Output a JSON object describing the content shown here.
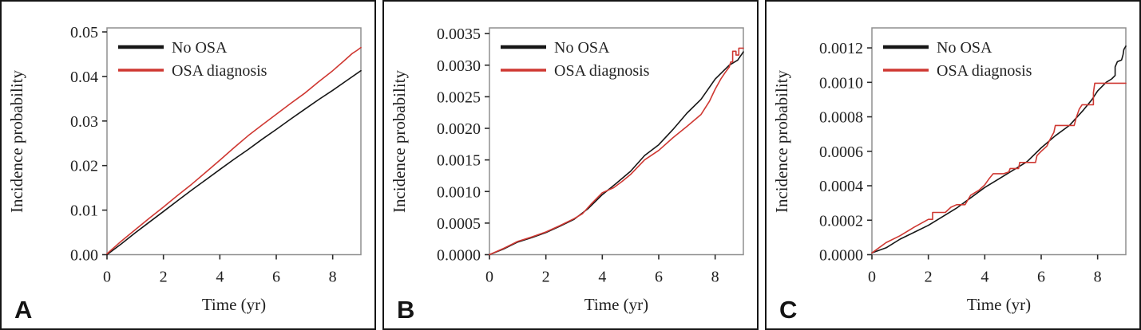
{
  "figure": {
    "background": "#ffffff",
    "panel_border_color": "#161616",
    "plot_box_color": "#8f8f8f",
    "text_color": "#1f1f1f",
    "series_colors": {
      "no_osa": "#161616",
      "osa": "#cf3832"
    }
  },
  "chart_data": [
    {
      "type": "line",
      "panel_label": "A",
      "xlabel": "Time (yr)",
      "ylabel": "Incidence probability",
      "xlim": [
        0,
        9
      ],
      "ylim": [
        0,
        0.05
      ],
      "xticks": [
        "0",
        "2",
        "4",
        "6",
        "8"
      ],
      "yticks": [
        "0.00",
        "0.01",
        "0.02",
        "0.03",
        "0.04",
        "0.05"
      ],
      "grid": false,
      "legend_position": "top-left-inside",
      "legend": [
        {
          "label": "No OSA",
          "color": "#161616"
        },
        {
          "label": "OSA diagnosis",
          "color": "#cf3832"
        }
      ],
      "layout": {
        "y_top": 0.0509
      },
      "series": [
        {
          "name": "No OSA",
          "color": "#161616",
          "points": [
            [
              0,
              0
            ],
            [
              0.5,
              0.0024
            ],
            [
              1,
              0.0049
            ],
            [
              1.5,
              0.0073
            ],
            [
              2,
              0.0097
            ],
            [
              2.5,
              0.0121
            ],
            [
              3,
              0.0145
            ],
            [
              3.5,
              0.0168
            ],
            [
              4,
              0.0191
            ],
            [
              4.5,
              0.0214
            ],
            [
              5,
              0.0236
            ],
            [
              5.5,
              0.0259
            ],
            [
              6,
              0.0281
            ],
            [
              6.5,
              0.0304
            ],
            [
              7,
              0.0326
            ],
            [
              7.5,
              0.0348
            ],
            [
              8,
              0.0369
            ],
            [
              8.5,
              0.0391
            ],
            [
              9,
              0.0413
            ]
          ]
        },
        {
          "name": "OSA diagnosis",
          "color": "#cf3832",
          "points": [
            [
              0,
              0.0002
            ],
            [
              0.5,
              0.003
            ],
            [
              1,
              0.0056
            ],
            [
              1.5,
              0.0082
            ],
            [
              2,
              0.0107
            ],
            [
              2.5,
              0.0133
            ],
            [
              3,
              0.0158
            ],
            [
              3.5,
              0.0185
            ],
            [
              4,
              0.0212
            ],
            [
              4.5,
              0.024
            ],
            [
              5,
              0.0267
            ],
            [
              5.5,
              0.0291
            ],
            [
              6,
              0.0315
            ],
            [
              6.5,
              0.0339
            ],
            [
              7,
              0.0362
            ],
            [
              7.5,
              0.0388
            ],
            [
              8,
              0.0413
            ],
            [
              8.4,
              0.0435
            ],
            [
              8.7,
              0.0452
            ],
            [
              8.85,
              0.0458
            ],
            [
              9,
              0.0465
            ]
          ]
        }
      ]
    },
    {
      "type": "line",
      "panel_label": "B",
      "xlabel": "Time (yr)",
      "ylabel": "Incidence probability",
      "xlim": [
        0,
        9
      ],
      "ylim": [
        0,
        0.0035
      ],
      "xticks": [
        "0",
        "2",
        "4",
        "6",
        "8"
      ],
      "yticks": [
        "0.0000",
        "0.0005",
        "0.0010",
        "0.0015",
        "0.0020",
        "0.0025",
        "0.0030",
        "0.0035"
      ],
      "grid": false,
      "legend_position": "top-left-inside",
      "legend": [
        {
          "label": "No OSA",
          "color": "#161616"
        },
        {
          "label": "OSA diagnosis",
          "color": "#cf3832"
        }
      ],
      "layout": {
        "y_top": 0.00359
      },
      "series": [
        {
          "name": "No OSA",
          "color": "#161616",
          "points": [
            [
              0,
              0
            ],
            [
              0.5,
              9e-05
            ],
            [
              1,
              0.0002
            ],
            [
              1.5,
              0.00027
            ],
            [
              2,
              0.00035
            ],
            [
              2.5,
              0.00045
            ],
            [
              3,
              0.00056
            ],
            [
              3.5,
              0.00073
            ],
            [
              4,
              0.00095
            ],
            [
              4.5,
              0.00113
            ],
            [
              5,
              0.00132
            ],
            [
              5.5,
              0.00157
            ],
            [
              6,
              0.00174
            ],
            [
              6.5,
              0.00198
            ],
            [
              7,
              0.00224
            ],
            [
              7.5,
              0.00246
            ],
            [
              8,
              0.00278
            ],
            [
              8.5,
              0.003
            ],
            [
              8.8,
              0.00308
            ],
            [
              9,
              0.00321
            ]
          ]
        },
        {
          "name": "OSA diagnosis",
          "color": "#cf3832",
          "points": [
            [
              0,
              0
            ],
            [
              0.5,
              0.0001
            ],
            [
              1,
              0.00021
            ],
            [
              1.5,
              0.00028
            ],
            [
              2,
              0.00036
            ],
            [
              2.5,
              0.00046
            ],
            [
              3,
              0.00057
            ],
            [
              3.3,
              0.00065
            ],
            [
              3.6,
              0.0008
            ],
            [
              4,
              0.00098
            ],
            [
              4.4,
              0.00106
            ],
            [
              4.7,
              0.00116
            ],
            [
              5,
              0.00127
            ],
            [
              5.5,
              0.0015
            ],
            [
              6,
              0.00165
            ],
            [
              6.5,
              0.00185
            ],
            [
              7,
              0.00203
            ],
            [
              7.5,
              0.00222
            ],
            [
              7.8,
              0.00243
            ],
            [
              8,
              0.00262
            ],
            [
              8.2,
              0.00278
            ],
            [
              8.35,
              0.00288
            ],
            [
              8.5,
              0.00297
            ],
            [
              8.55,
              0.00305
            ],
            [
              8.62,
              0.00305
            ],
            [
              8.62,
              0.00322
            ],
            [
              8.74,
              0.00322
            ],
            [
              8.74,
              0.00316
            ],
            [
              8.84,
              0.00316
            ],
            [
              8.84,
              0.00327
            ],
            [
              9,
              0.00327
            ]
          ]
        }
      ]
    },
    {
      "type": "line",
      "panel_label": "C",
      "xlabel": "Time (yr)",
      "ylabel": "Incidence probability",
      "xlim": [
        0,
        9
      ],
      "ylim": [
        0,
        0.0012
      ],
      "xticks": [
        "0",
        "2",
        "4",
        "6",
        "8"
      ],
      "yticks": [
        "0.0000",
        "0.0002",
        "0.0004",
        "0.0006",
        "0.0008",
        "0.0010",
        "0.0012"
      ],
      "grid": false,
      "legend_position": "top-left-inside",
      "legend": [
        {
          "label": "No OSA",
          "color": "#161616"
        },
        {
          "label": "OSA diagnosis",
          "color": "#cf3832"
        }
      ],
      "layout": {
        "y_top": 0.001316
      },
      "series": [
        {
          "name": "No OSA",
          "color": "#161616",
          "points": [
            [
              0,
              1e-05
            ],
            [
              0.5,
              4e-05
            ],
            [
              1,
              9e-05
            ],
            [
              1.5,
              0.00013
            ],
            [
              2,
              0.00017
            ],
            [
              2.5,
              0.00022
            ],
            [
              3,
              0.00027
            ],
            [
              3.5,
              0.00033
            ],
            [
              4,
              0.00039
            ],
            [
              4.5,
              0.00044
            ],
            [
              5,
              0.00049
            ],
            [
              5.5,
              0.00054
            ],
            [
              6,
              0.00062
            ],
            [
              6.5,
              0.00069
            ],
            [
              7,
              0.00075
            ],
            [
              7.5,
              0.00084
            ],
            [
              7.8,
              0.0009
            ],
            [
              8,
              0.00095
            ],
            [
              8.3,
              0.001
            ],
            [
              8.5,
              0.00102
            ],
            [
              8.62,
              0.00104
            ],
            [
              8.62,
              0.00109
            ],
            [
              8.7,
              0.00112
            ],
            [
              8.85,
              0.00113
            ],
            [
              8.9,
              0.00116
            ],
            [
              8.93,
              0.00119
            ],
            [
              9,
              0.00121
            ]
          ]
        },
        {
          "name": "OSA diagnosis",
          "color": "#cf3832",
          "points": [
            [
              0,
              1e-05
            ],
            [
              0.5,
              7e-05
            ],
            [
              1,
              0.00011
            ],
            [
              1.5,
              0.00016
            ],
            [
              2,
              0.000205
            ],
            [
              2.15,
              0.000205
            ],
            [
              2.15,
              0.000245
            ],
            [
              2.6,
              0.000245
            ],
            [
              2.8,
              0.000275
            ],
            [
              3,
              0.00029
            ],
            [
              3.3,
              0.00029
            ],
            [
              3.5,
              0.000345
            ],
            [
              3.8,
              0.000375
            ],
            [
              4,
              0.000405
            ],
            [
              4.15,
              0.00044
            ],
            [
              4.3,
              0.00047
            ],
            [
              4.67,
              0.00047
            ],
            [
              4.85,
              0.00048
            ],
            [
              4.9,
              0.0005
            ],
            [
              5.2,
              0.0005
            ],
            [
              5.24,
              0.000535
            ],
            [
              5.8,
              0.000535
            ],
            [
              5.85,
              0.000575
            ],
            [
              6,
              0.0006
            ],
            [
              6.2,
              0.00063
            ],
            [
              6.3,
              0.000665
            ],
            [
              6.45,
              0.00071
            ],
            [
              6.5,
              0.00075
            ],
            [
              7.17,
              0.00075
            ],
            [
              7.25,
              0.0008
            ],
            [
              7.35,
              0.000845
            ],
            [
              7.45,
              0.00087
            ],
            [
              7.85,
              0.00087
            ],
            [
              7.85,
              0.00094
            ],
            [
              7.9,
              0.000995
            ],
            [
              9,
              0.000995
            ]
          ]
        }
      ]
    }
  ]
}
